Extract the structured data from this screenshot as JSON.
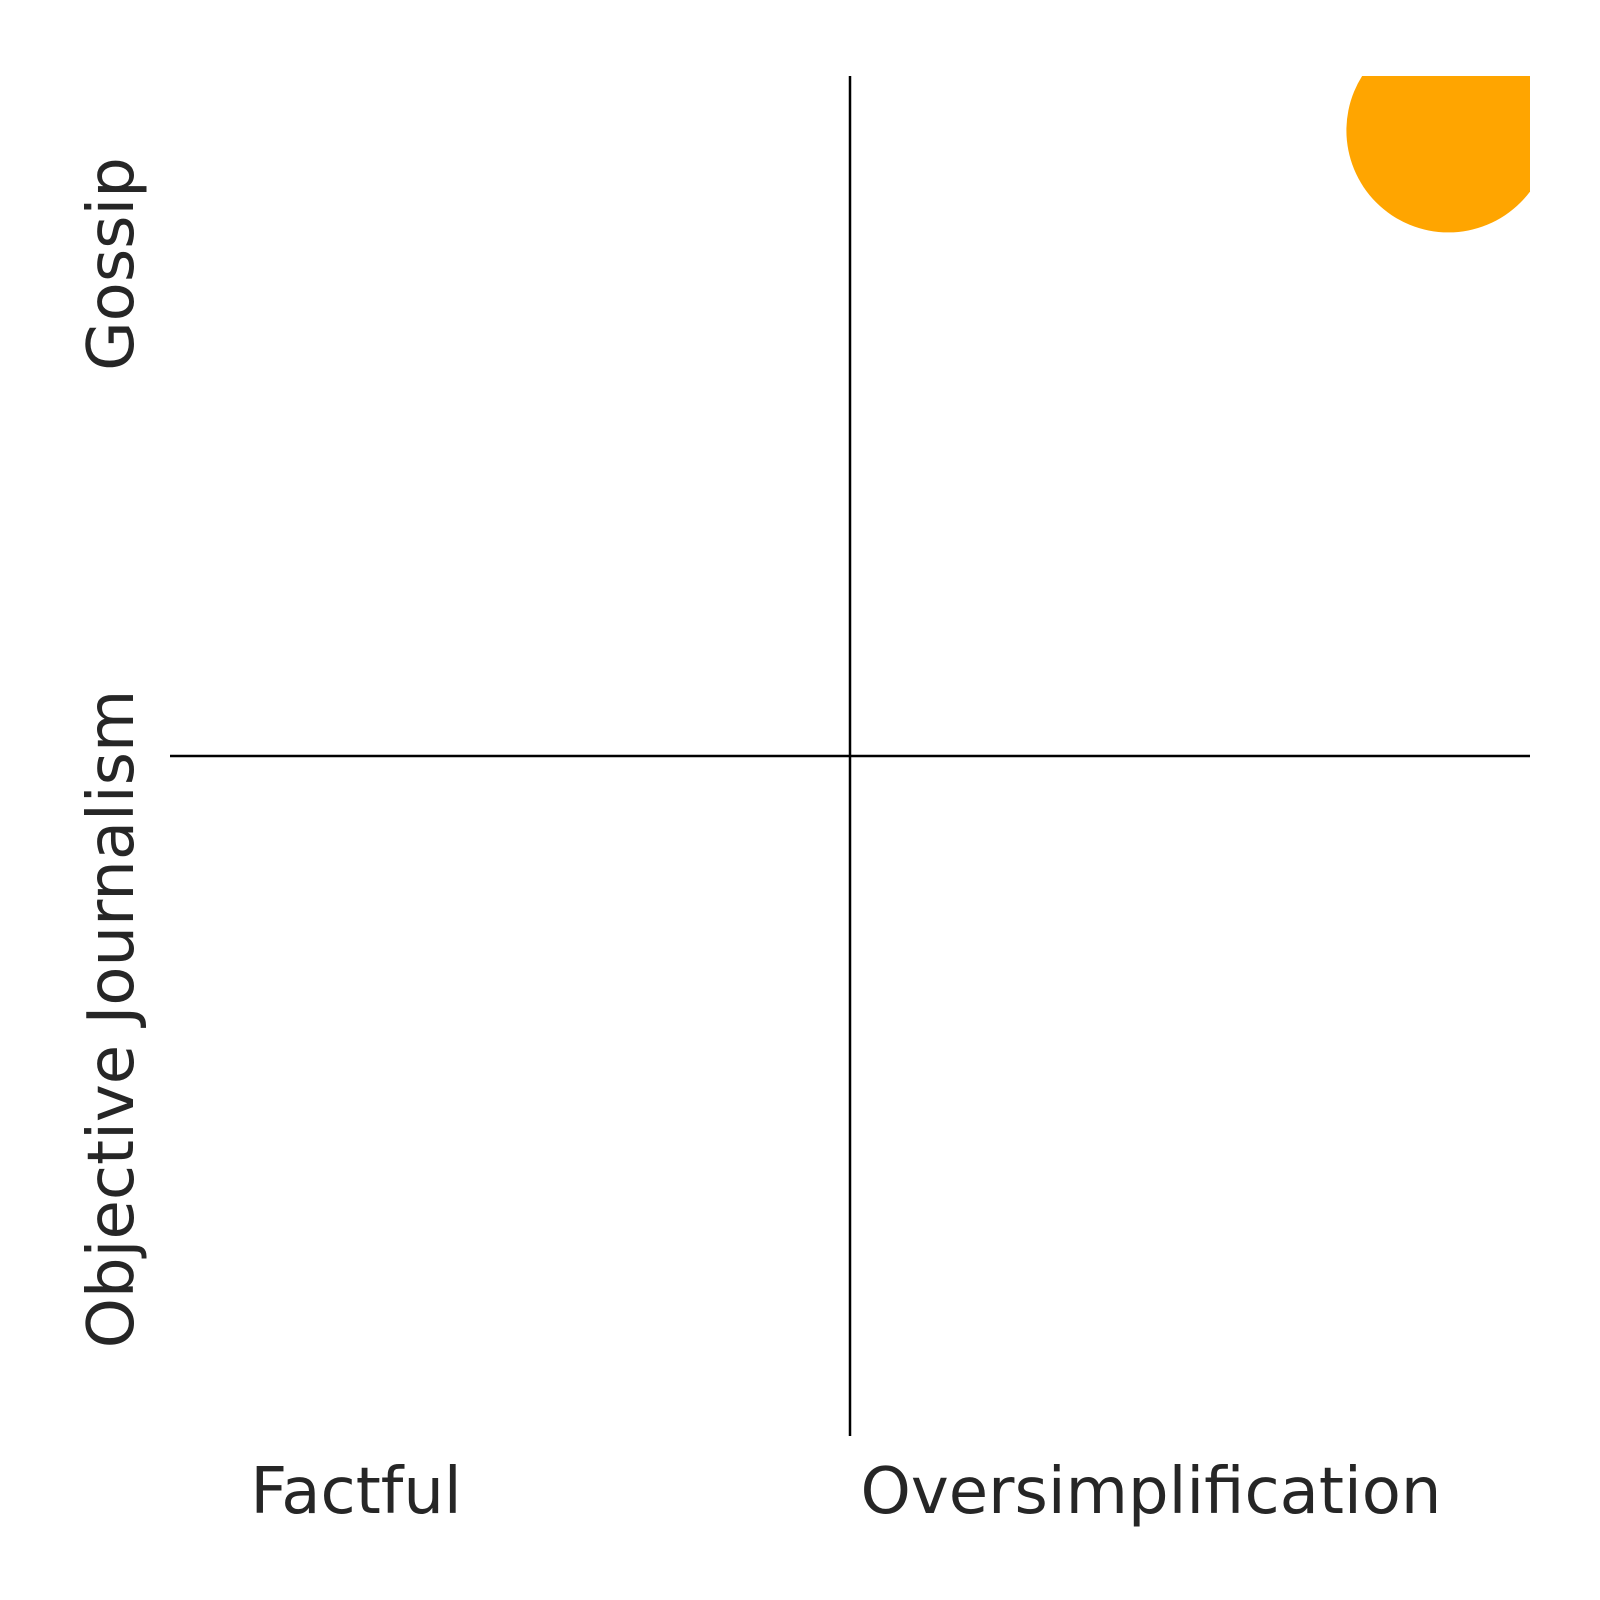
{
  "chart_data": {
    "type": "scatter",
    "title": "",
    "x_labels": [
      "Factful",
      "Oversimplification"
    ],
    "y_labels": [
      "Objective Journalism",
      "Gossip"
    ],
    "xlim": [
      0,
      1
    ],
    "ylim": [
      0,
      1
    ],
    "grid": false,
    "series": [
      {
        "x": [
          0.94
        ],
        "y": [
          0.96
        ],
        "color": "#FFA500"
      }
    ]
  }
}
